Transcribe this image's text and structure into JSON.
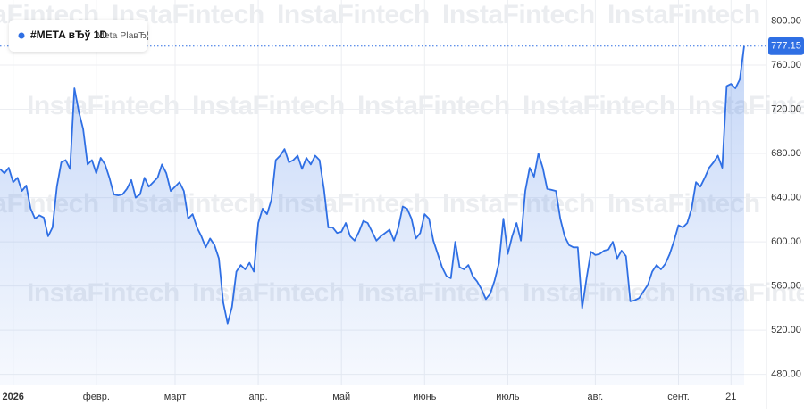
{
  "chart_data": {
    "type": "line",
    "symbol": "#META вЂў 1D",
    "description": "Meta PlaвЂ¦",
    "watermark": "InstaFintech",
    "categories": [
      null,
      null,
      null,
      "2026",
      null,
      null,
      null,
      null,
      null,
      null,
      null,
      null,
      null,
      null,
      null,
      null,
      null,
      null,
      null,
      null,
      null,
      null,
      "февр.",
      null,
      null,
      null,
      null,
      null,
      null,
      null,
      null,
      null,
      null,
      null,
      null,
      null,
      null,
      null,
      null,
      null,
      "март",
      null,
      null,
      null,
      null,
      null,
      null,
      null,
      null,
      null,
      null,
      null,
      null,
      null,
      null,
      null,
      null,
      null,
      null,
      "апр.",
      null,
      null,
      null,
      null,
      null,
      null,
      null,
      null,
      null,
      null,
      null,
      null,
      null,
      null,
      null,
      null,
      null,
      null,
      "май",
      null,
      null,
      null,
      null,
      null,
      null,
      null,
      null,
      null,
      null,
      null,
      null,
      null,
      null,
      null,
      null,
      null,
      null,
      "июнь",
      null,
      null,
      null,
      null,
      null,
      null,
      null,
      null,
      null,
      null,
      null,
      null,
      null,
      null,
      null,
      null,
      null,
      null,
      "июль",
      null,
      null,
      null,
      null,
      null,
      null,
      null,
      null,
      null,
      null,
      null,
      null,
      null,
      null,
      null,
      null,
      null,
      null,
      null,
      "авг.",
      null,
      null,
      null,
      null,
      null,
      null,
      null,
      null,
      null,
      null,
      null,
      null,
      null,
      null,
      null,
      null,
      null,
      null,
      "сент.",
      null,
      null,
      null,
      null,
      null,
      null,
      null,
      null,
      null,
      null,
      null,
      "21",
      null,
      null,
      null
    ],
    "series": [
      {
        "name": "#META",
        "color": "#2f6fe4",
        "values": [
          666,
          662,
          667,
          654,
          658,
          646,
          651,
          630,
          621,
          624,
          622,
          605,
          613,
          650,
          672,
          674,
          666,
          739,
          718,
          702,
          670,
          674,
          662,
          676,
          670,
          658,
          643,
          642,
          643,
          648,
          656,
          640,
          643,
          658,
          650,
          654,
          658,
          670,
          662,
          646,
          650,
          654,
          646,
          621,
          625,
          613,
          605,
          595,
          603,
          597,
          585,
          545,
          526,
          541,
          573,
          579,
          575,
          581,
          573,
          617,
          630,
          625,
          638,
          674,
          678,
          684,
          672,
          674,
          678,
          666,
          676,
          670,
          678,
          674,
          648,
          613,
          613,
          608,
          609,
          617,
          605,
          601,
          609,
          619,
          617,
          609,
          601,
          605,
          608,
          611,
          601,
          613,
          632,
          630,
          621,
          603,
          608,
          625,
          621,
          601,
          589,
          577,
          569,
          567,
          600,
          577,
          575,
          579,
          569,
          564,
          557,
          548,
          553,
          565,
          581,
          621,
          589,
          605,
          617,
          601,
          646,
          667,
          659,
          680,
          667,
          648,
          647,
          646,
          621,
          605,
          597,
          595,
          595,
          540,
          567,
          591,
          588,
          589,
          592,
          593,
          600,
          585,
          592,
          587,
          546,
          547,
          549,
          555,
          561,
          573,
          579,
          575,
          580,
          589,
          601,
          615,
          613,
          617,
          630,
          654,
          650,
          658,
          667,
          672,
          678,
          667,
          741,
          743,
          739,
          747,
          777.15
        ]
      }
    ],
    "ylim": [
      470,
      819
    ],
    "yticks": [
      {
        "value": 480,
        "label": "480.00"
      },
      {
        "value": 520,
        "label": "520.00"
      },
      {
        "value": 560,
        "label": "560.00"
      },
      {
        "value": 600,
        "label": "600.00"
      },
      {
        "value": 640,
        "label": "640.00"
      },
      {
        "value": 680,
        "label": "680.00"
      },
      {
        "value": 720,
        "label": "720.00"
      },
      {
        "value": 760,
        "label": "760.00"
      },
      {
        "value": 800,
        "label": "800.00"
      }
    ],
    "grid": true
  }
}
